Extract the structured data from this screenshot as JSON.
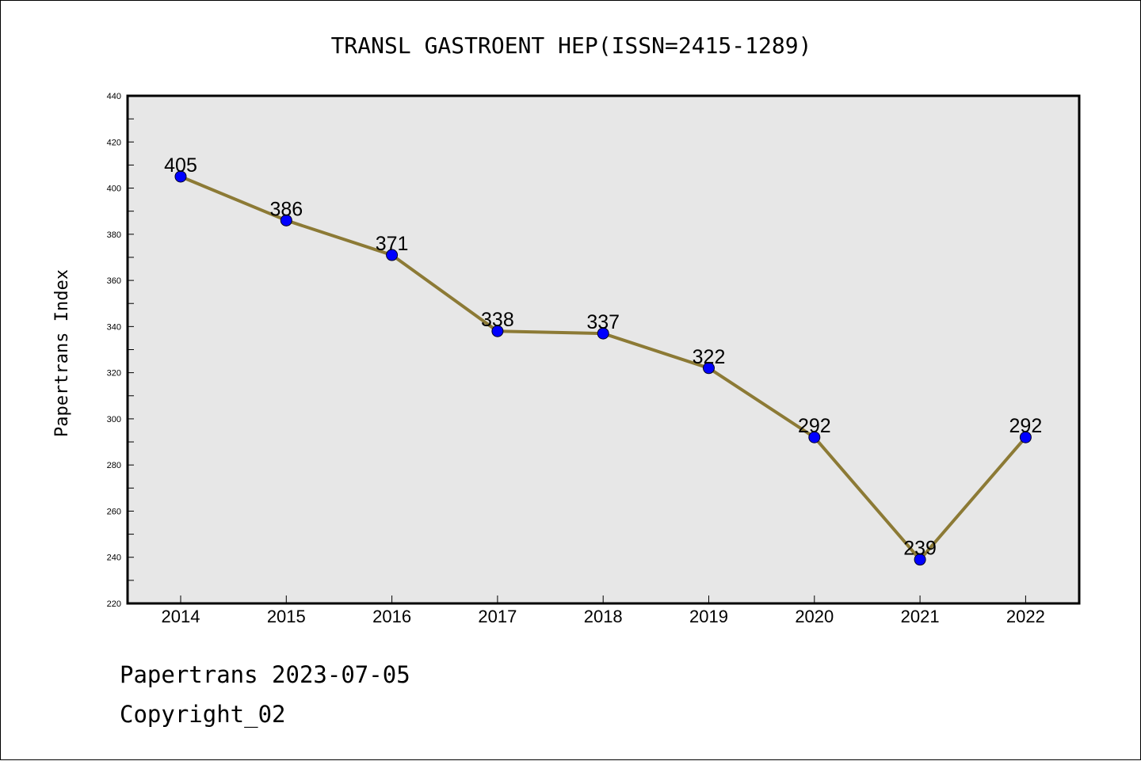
{
  "chart_data": {
    "type": "line",
    "title": "TRANSL GASTROENT HEP(ISSN=2415-1289)",
    "xlabel": "",
    "ylabel": "Papertrans Index",
    "categories": [
      "2014",
      "2015",
      "2016",
      "2017",
      "2018",
      "2019",
      "2020",
      "2021",
      "2022"
    ],
    "series": [
      {
        "values": [
          405,
          386,
          371,
          338,
          337,
          322,
          292,
          239,
          292
        ]
      }
    ],
    "ylim": [
      220,
      440
    ],
    "yticks": [
      220,
      240,
      260,
      280,
      300,
      320,
      340,
      360,
      380,
      400,
      420,
      440
    ],
    "grid": false,
    "line_color": "#8c7a35",
    "marker_color": "#0000ff",
    "plot_background": "#e7e7e7"
  },
  "footer": {
    "line1": "Papertrans 2023-07-05",
    "line2": "Copyright_02"
  }
}
